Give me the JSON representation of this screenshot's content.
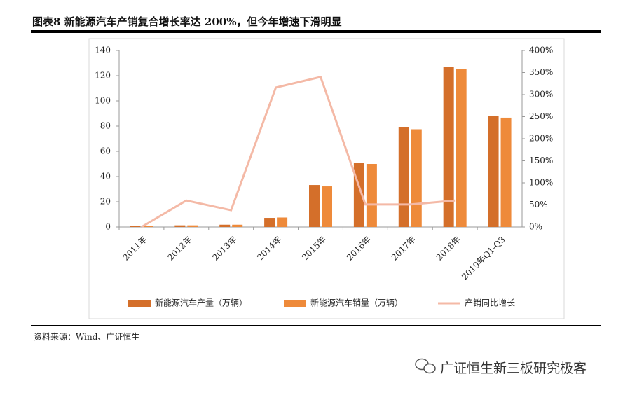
{
  "header": {
    "title": "图表8 新能源汽车产销复合增长率达 200%，但今年增速下滑明显"
  },
  "footer": {
    "source": "资料来源：Wind、广证恒生",
    "watermark": "广证恒生新三板研究极客"
  },
  "chart_data": {
    "type": "bar",
    "categories": [
      "2011年",
      "2012年",
      "2013年",
      "2014年",
      "2015年",
      "2016年",
      "2017年",
      "2018年",
      "2019年Q1-Q3"
    ],
    "series": [
      {
        "name": "新能源汽车产量（万辆）",
        "type": "bar",
        "color": "#d46f2a",
        "values": [
          0.8,
          1.3,
          1.8,
          7.2,
          33.3,
          51,
          79,
          126.7,
          88.3
        ]
      },
      {
        "name": "新能源汽车销量（万辆）",
        "type": "bar",
        "color": "#ee8a3a",
        "values": [
          0.8,
          1.3,
          1.8,
          7.5,
          32.2,
          50,
          77.5,
          125,
          86.7
        ]
      },
      {
        "name": "产销同比增长",
        "type": "line",
        "axis": "y2",
        "color": "#f4b9a6",
        "values": [
          0,
          60,
          38,
          316,
          340,
          51,
          51,
          60,
          null
        ]
      }
    ],
    "ylim": [
      0,
      140
    ],
    "yticks": [
      0,
      20,
      40,
      60,
      80,
      100,
      120,
      140
    ],
    "y2lim": [
      0,
      400
    ],
    "y2ticks": [
      {
        "value": 0,
        "label": "0%"
      },
      {
        "value": 50,
        "label": "50%"
      },
      {
        "value": 100,
        "label": "100%"
      },
      {
        "value": 150,
        "label": "150%"
      },
      {
        "value": 200,
        "label": "200%"
      },
      {
        "value": 250,
        "label": "250%"
      },
      {
        "value": 300,
        "label": "300%"
      },
      {
        "value": 350,
        "label": "350%"
      },
      {
        "value": 400,
        "label": "400%"
      }
    ],
    "grid": false,
    "legend": "bottom"
  }
}
